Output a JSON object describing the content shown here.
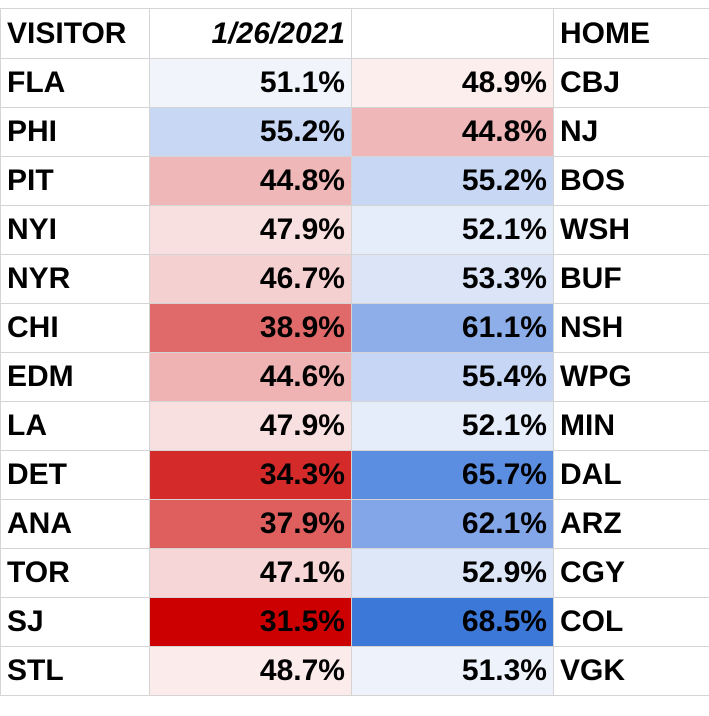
{
  "header": {
    "visitor_label": "VISITOR",
    "date": "1/26/2021",
    "blank": "",
    "home_label": "HOME"
  },
  "games": [
    {
      "visitor": "FLA",
      "visitor_pct": "51.1%",
      "home_pct": "48.9%",
      "home": "CBJ",
      "visitor_color": "#f1f4fb",
      "home_color": "#fbeeed"
    },
    {
      "visitor": "PHI",
      "visitor_pct": "55.2%",
      "home_pct": "44.8%",
      "home": "NJ",
      "visitor_color": "#c8d8f4",
      "home_color": "#efb7b7"
    },
    {
      "visitor": "PIT",
      "visitor_pct": "44.8%",
      "home_pct": "55.2%",
      "home": "BOS",
      "visitor_color": "#efb7b7",
      "home_color": "#c8d8f4"
    },
    {
      "visitor": "NYI",
      "visitor_pct": "47.9%",
      "home_pct": "52.1%",
      "home": "WSH",
      "visitor_color": "#f9e0e0",
      "home_color": "#e6edfa"
    },
    {
      "visitor": "NYR",
      "visitor_pct": "46.7%",
      "home_pct": "53.3%",
      "home": "BUF",
      "visitor_color": "#f4d0d0",
      "home_color": "#dbe5f7"
    },
    {
      "visitor": "CHI",
      "visitor_pct": "38.9%",
      "home_pct": "61.1%",
      "home": "NSH",
      "visitor_color": "#e06a6a",
      "home_color": "#8daee9"
    },
    {
      "visitor": "EDM",
      "visitor_pct": "44.6%",
      "home_pct": "55.4%",
      "home": "WPG",
      "visitor_color": "#efb3b3",
      "home_color": "#c6d6f4"
    },
    {
      "visitor": "LA",
      "visitor_pct": "47.9%",
      "home_pct": "52.1%",
      "home": "MIN",
      "visitor_color": "#f9e0e0",
      "home_color": "#e6edfa"
    },
    {
      "visitor": "DET",
      "visitor_pct": "34.3%",
      "home_pct": "65.7%",
      "home": "DAL",
      "visitor_color": "#d42a2a",
      "home_color": "#5b8de0"
    },
    {
      "visitor": "ANA",
      "visitor_pct": "37.9%",
      "home_pct": "62.1%",
      "home": "ARZ",
      "visitor_color": "#df5e5e",
      "home_color": "#82a6e7"
    },
    {
      "visitor": "TOR",
      "visitor_pct": "47.1%",
      "home_pct": "52.9%",
      "home": "CGY",
      "visitor_color": "#f6d6d6",
      "home_color": "#dee7f8"
    },
    {
      "visitor": "SJ",
      "visitor_pct": "31.5%",
      "home_pct": "68.5%",
      "home": "COL",
      "visitor_color": "#cc0000",
      "home_color": "#3c78d8"
    },
    {
      "visitor": "STL",
      "visitor_pct": "48.7%",
      "home_pct": "51.3%",
      "home": "VGK",
      "visitor_color": "#fbebeb",
      "home_color": "#eef2fb"
    }
  ]
}
